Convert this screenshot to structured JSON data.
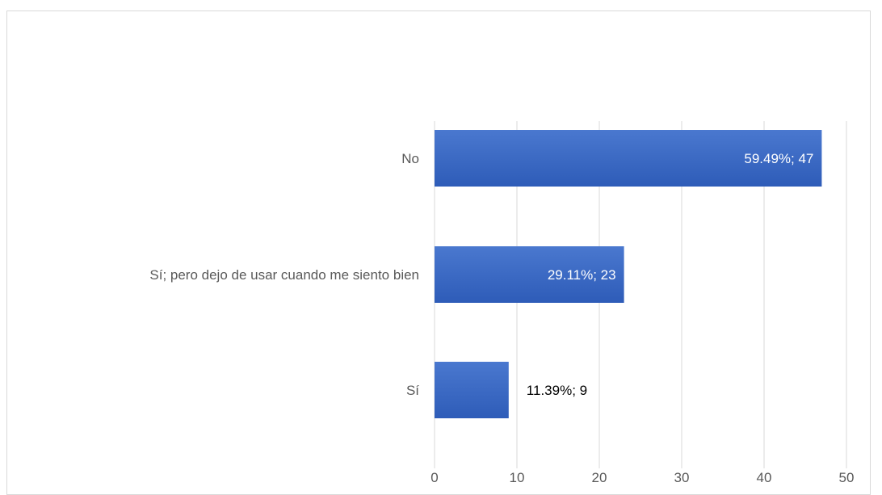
{
  "chart_data": {
    "type": "bar",
    "orientation": "horizontal",
    "categories": [
      "No",
      "Sí;  pero dejo de usar cuando me siento bien",
      "Sí"
    ],
    "values": [
      47,
      23,
      9
    ],
    "data_labels": [
      "59.49%; 47",
      "29.11%; 23",
      "11.39%; 9"
    ],
    "xlim": [
      0,
      50
    ],
    "xticks": [
      0,
      10,
      20,
      30,
      40,
      50
    ],
    "grid": true,
    "title": "",
    "xlabel": "",
    "ylabel": "",
    "colors": {
      "bar": "#4472c4",
      "bar_dark": "#2f5fba",
      "grid": "#d9d9d9",
      "text": "#595959",
      "label_inside": "#ffffff",
      "label_outside": "#000000"
    }
  }
}
